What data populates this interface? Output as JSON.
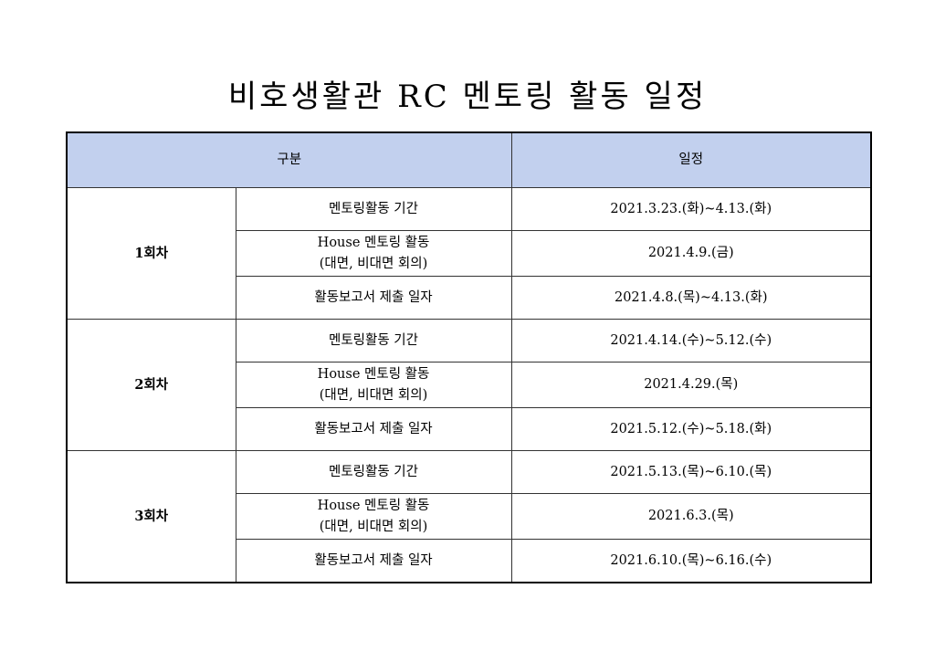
{
  "title": "비호생활관 RC 멘토링 활동 일정",
  "table": {
    "headers": [
      "구분",
      "일정"
    ],
    "header_bg": "#c2d0ee",
    "rounds": [
      {
        "label": "1회차",
        "rows": [
          {
            "item": "멘토링활동 기간",
            "item2": "",
            "schedule": "2021.3.23.(화)~4.13.(화)"
          },
          {
            "item": "House 멘토링 활동",
            "item2": "(대면, 비대면 회의)",
            "schedule": "2021.4.9.(금)"
          },
          {
            "item": "활동보고서 제출 일자",
            "item2": "",
            "schedule": "2021.4.8.(목)~4.13.(화)"
          }
        ]
      },
      {
        "label": "2회차",
        "rows": [
          {
            "item": "멘토링활동 기간",
            "item2": "",
            "schedule": "2021.4.14.(수)~5.12.(수)"
          },
          {
            "item": "House 멘토링 활동",
            "item2": "(대면, 비대면 회의)",
            "schedule": "2021.4.29.(목)"
          },
          {
            "item": "활동보고서 제출 일자",
            "item2": "",
            "schedule": "2021.5.12.(수)~5.18.(화)"
          }
        ]
      },
      {
        "label": "3회차",
        "rows": [
          {
            "item": "멘토링활동 기간",
            "item2": "",
            "schedule": "2021.5.13.(목)~6.10.(목)"
          },
          {
            "item": "House 멘토링 활동",
            "item2": "(대면, 비대면 회의)",
            "schedule": "2021.6.3.(목)"
          },
          {
            "item": "활동보고서 제출 일자",
            "item2": "",
            "schedule": "2021.6.10.(목)~6.16.(수)"
          }
        ]
      }
    ]
  }
}
